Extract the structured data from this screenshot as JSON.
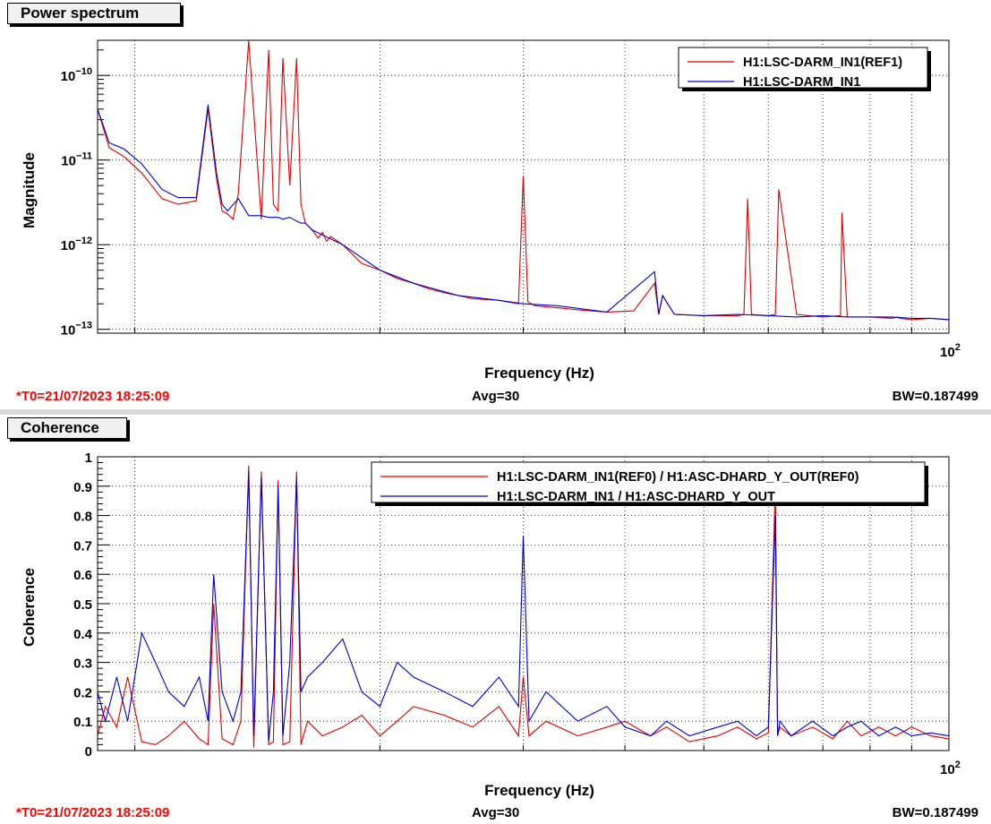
{
  "panels": {
    "top": {
      "title": "Power spectrum",
      "t0": "*T0=21/07/2023 18:25:09",
      "avg": "Avg=30",
      "bw": "BW=0.187499"
    },
    "bottom": {
      "title": "Coherence",
      "t0": "*T0=21/07/2023 18:25:09",
      "avg": "Avg=30",
      "bw": "BW=0.187499"
    }
  },
  "colors": {
    "ref": "#dd0000",
    "live": "#0000cc"
  },
  "chart_data": [
    {
      "type": "line",
      "xlabel": "Frequency (Hz)",
      "ylabel": "Magnitude",
      "xscale": "log",
      "yscale": "log",
      "xlim": [
        9,
        100
      ],
      "ylim": [
        9e-14,
        2.6e-10
      ],
      "x_tick_labels": [
        {
          "value": 100,
          "base": "10",
          "exp": "2"
        }
      ],
      "y_tick_labels": [
        {
          "value": 1e-10,
          "base": "10",
          "exp": "−10"
        },
        {
          "value": 1e-11,
          "base": "10",
          "exp": "−11"
        },
        {
          "value": 1e-12,
          "base": "10",
          "exp": "−12"
        },
        {
          "value": 1e-13,
          "base": "10",
          "exp": "−13"
        }
      ],
      "grid": true,
      "legend": {
        "placement": "top-right",
        "entries": [
          {
            "label": "H1:LSC-DARM_IN1(REF1)",
            "color": "#dd0000"
          },
          {
            "label": "H1:LSC-DARM_IN1",
            "color": "#0000cc"
          }
        ]
      },
      "series": [
        {
          "name": "H1:LSC-DARM_IN1(REF1)",
          "color": "#dd0000",
          "x": [
            9.0,
            9.3,
            9.7,
            10.2,
            10.8,
            11.3,
            11.9,
            12.3,
            12.6,
            12.8,
            13.0,
            13.2,
            13.4,
            13.8,
            14.3,
            14.6,
            14.8,
            15.0,
            15.2,
            15.5,
            15.8,
            16.0,
            16.2,
            16.5,
            16.8,
            17.0,
            17.2,
            17.4,
            18.0,
            19.0,
            20.0,
            21.0,
            22.0,
            23.0,
            24.0,
            25.0,
            26.0,
            28.0,
            29.6,
            30.0,
            30.4,
            31.0,
            33.0,
            35.0,
            38.0,
            41.0,
            43.5,
            44.0,
            44.5,
            46.0,
            50.0,
            55.0,
            56.0,
            56.6,
            57.2,
            60.0,
            61.2,
            61.8,
            65.0,
            70.0,
            73.6,
            73.9,
            75.0,
            80.0,
            85.0,
            86.6,
            87.0,
            90.0,
            95.0,
            100.0
          ],
          "y": [
            4e-11,
            1.4e-11,
            1.1e-11,
            7e-12,
            3.5e-12,
            3e-12,
            3.3e-12,
            4e-11,
            6e-12,
            2.5e-12,
            2.3e-12,
            2e-12,
            4e-12,
            2.6e-10,
            2e-12,
            2e-10,
            3e-12,
            2.5e-12,
            1.6e-10,
            5e-12,
            1.6e-10,
            3e-12,
            1.8e-12,
            1.5e-12,
            1.2e-12,
            1.4e-12,
            1.1e-12,
            1.25e-12,
            1e-12,
            6e-13,
            5e-13,
            4e-13,
            3.5e-13,
            3e-13,
            2.7e-13,
            2.5e-13,
            2.3e-13,
            2.2e-13,
            2e-13,
            6.5e-12,
            2.1e-13,
            1.9e-13,
            1.8e-13,
            1.7e-13,
            1.6e-13,
            1.65e-13,
            3.5e-13,
            1.5e-13,
            2.5e-13,
            1.5e-13,
            1.45e-13,
            1.45e-13,
            1.5e-13,
            3.5e-12,
            1.5e-13,
            1.45e-13,
            1.5e-13,
            4.5e-12,
            1.5e-13,
            1.4e-13,
            1.45e-13,
            2.4e-12,
            1.4e-13,
            1.4e-13,
            1.35e-13,
            1.4e-13,
            1.35e-13,
            1.3e-13,
            1.35e-13,
            1.3e-13
          ]
        },
        {
          "name": "H1:LSC-DARM_IN1",
          "color": "#0000cc",
          "x": [
            9.0,
            9.3,
            9.7,
            10.2,
            10.8,
            11.3,
            11.9,
            12.3,
            12.6,
            12.8,
            13.0,
            13.4,
            13.8,
            14.3,
            14.6,
            14.8,
            15.0,
            15.2,
            15.5,
            15.8,
            16.0,
            16.2,
            16.5,
            17.0,
            18.0,
            20.0,
            22.0,
            25.0,
            28.0,
            30.0,
            33.0,
            38.0,
            43.5,
            44.0,
            44.5,
            46.0,
            50.0,
            55.0,
            60.0,
            65.0,
            70.0,
            75.0,
            80.0,
            85.0,
            90.0,
            95.0,
            100.0
          ],
          "y": [
            4e-11,
            1.6e-11,
            1.35e-11,
            9e-12,
            4.5e-12,
            3.6e-12,
            3.6e-12,
            4.5e-11,
            7e-12,
            3e-12,
            2.5e-12,
            3.5e-12,
            2.2e-12,
            2.2e-12,
            2.1e-12,
            2.1e-12,
            2.1e-12,
            2e-12,
            2.1e-12,
            1.9e-12,
            1.8e-12,
            1.8e-12,
            1.5e-12,
            1.3e-12,
            1e-12,
            5e-13,
            3.5e-13,
            2.5e-13,
            2.2e-13,
            2e-13,
            1.9e-13,
            1.6e-13,
            4.8e-13,
            1.5e-13,
            2.5e-13,
            1.5e-13,
            1.45e-13,
            1.5e-13,
            1.45e-13,
            1.4e-13,
            1.45e-13,
            1.4e-13,
            1.4e-13,
            1.4e-13,
            1.35e-13,
            1.35e-13,
            1.3e-13
          ]
        }
      ]
    },
    {
      "type": "line",
      "xlabel": "Frequency (Hz)",
      "ylabel": "Coherence",
      "xscale": "log",
      "yscale": "linear",
      "xlim": [
        9,
        100
      ],
      "ylim": [
        0,
        1
      ],
      "x_tick_labels": [
        {
          "value": 100,
          "base": "10",
          "exp": "2"
        }
      ],
      "y_tick_labels": [
        {
          "value": 0,
          "text": "0"
        },
        {
          "value": 0.1,
          "text": "0.1"
        },
        {
          "value": 0.2,
          "text": "0.2"
        },
        {
          "value": 0.3,
          "text": "0.3"
        },
        {
          "value": 0.4,
          "text": "0.4"
        },
        {
          "value": 0.5,
          "text": "0.5"
        },
        {
          "value": 0.6,
          "text": "0.6"
        },
        {
          "value": 0.7,
          "text": "0.7"
        },
        {
          "value": 0.8,
          "text": "0.8"
        },
        {
          "value": 0.9,
          "text": "0.9"
        },
        {
          "value": 1,
          "text": "1"
        }
      ],
      "grid": true,
      "legend": {
        "placement": "top-right",
        "entries": [
          {
            "label": "H1:LSC-DARM_IN1(REF0) / H1:ASC-DHARD_Y_OUT(REF0)",
            "color": "#dd0000"
          },
          {
            "label": "H1:LSC-DARM_IN1 / H1:ASC-DHARD_Y_OUT",
            "color": "#0000cc"
          }
        ]
      },
      "series": [
        {
          "name": "H1:LSC-DARM_IN1(REF0) / H1:ASC-DHARD_Y_OUT(REF0)",
          "color": "#dd0000",
          "x": [
            9.0,
            9.2,
            9.5,
            9.8,
            10.2,
            10.6,
            11.0,
            11.5,
            12.0,
            12.3,
            12.5,
            12.8,
            13.2,
            13.5,
            13.8,
            14.0,
            14.3,
            14.6,
            14.8,
            15.0,
            15.2,
            15.5,
            15.8,
            16.0,
            16.3,
            17.0,
            18.0,
            19.0,
            20.0,
            21.0,
            22.0,
            24.0,
            26.0,
            28.0,
            29.6,
            30.0,
            30.5,
            32.0,
            35.0,
            38.0,
            40.0,
            43.0,
            45.0,
            48.0,
            52.0,
            55.0,
            58.0,
            60.0,
            61.2,
            61.6,
            62.0,
            64.0,
            68.0,
            72.0,
            75.0,
            78.0,
            82.0,
            86.0,
            90.0,
            95.0,
            100.0
          ],
          "y": [
            0.05,
            0.15,
            0.08,
            0.25,
            0.03,
            0.02,
            0.05,
            0.1,
            0.04,
            0.02,
            0.5,
            0.04,
            0.02,
            0.1,
            0.97,
            0.01,
            0.95,
            0.02,
            0.03,
            0.92,
            0.02,
            0.03,
            0.95,
            0.02,
            0.1,
            0.05,
            0.08,
            0.12,
            0.05,
            0.1,
            0.15,
            0.12,
            0.08,
            0.15,
            0.05,
            0.25,
            0.05,
            0.1,
            0.05,
            0.08,
            0.1,
            0.05,
            0.08,
            0.03,
            0.05,
            0.08,
            0.04,
            0.06,
            0.9,
            0.05,
            0.08,
            0.05,
            0.08,
            0.04,
            0.1,
            0.05,
            0.08,
            0.05,
            0.08,
            0.05,
            0.04
          ]
        },
        {
          "name": "H1:LSC-DARM_IN1 / H1:ASC-DHARD_Y_OUT",
          "color": "#0000cc",
          "x": [
            9.0,
            9.2,
            9.5,
            9.8,
            10.2,
            10.6,
            11.0,
            11.5,
            12.0,
            12.3,
            12.5,
            12.8,
            13.2,
            13.5,
            13.8,
            14.0,
            14.3,
            14.6,
            14.8,
            15.0,
            15.2,
            15.5,
            15.8,
            16.0,
            16.3,
            17.0,
            18.0,
            19.0,
            20.0,
            21.0,
            22.0,
            24.0,
            26.0,
            28.0,
            29.6,
            30.0,
            30.5,
            32.0,
            35.0,
            38.0,
            40.0,
            43.0,
            45.0,
            48.0,
            52.0,
            55.0,
            58.0,
            60.0,
            61.2,
            61.6,
            62.0,
            64.0,
            68.0,
            72.0,
            75.0,
            78.0,
            82.0,
            86.0,
            90.0,
            95.0,
            100.0
          ],
          "y": [
            0.2,
            0.1,
            0.25,
            0.1,
            0.4,
            0.3,
            0.2,
            0.15,
            0.25,
            0.1,
            0.6,
            0.2,
            0.1,
            0.2,
            0.95,
            0.05,
            0.93,
            0.03,
            0.2,
            0.9,
            0.05,
            0.3,
            0.93,
            0.2,
            0.25,
            0.3,
            0.38,
            0.2,
            0.15,
            0.3,
            0.25,
            0.2,
            0.15,
            0.25,
            0.15,
            0.73,
            0.1,
            0.2,
            0.1,
            0.15,
            0.08,
            0.05,
            0.1,
            0.05,
            0.08,
            0.1,
            0.05,
            0.08,
            0.8,
            0.05,
            0.1,
            0.05,
            0.1,
            0.05,
            0.08,
            0.1,
            0.05,
            0.08,
            0.05,
            0.06,
            0.05
          ]
        }
      ]
    }
  ]
}
